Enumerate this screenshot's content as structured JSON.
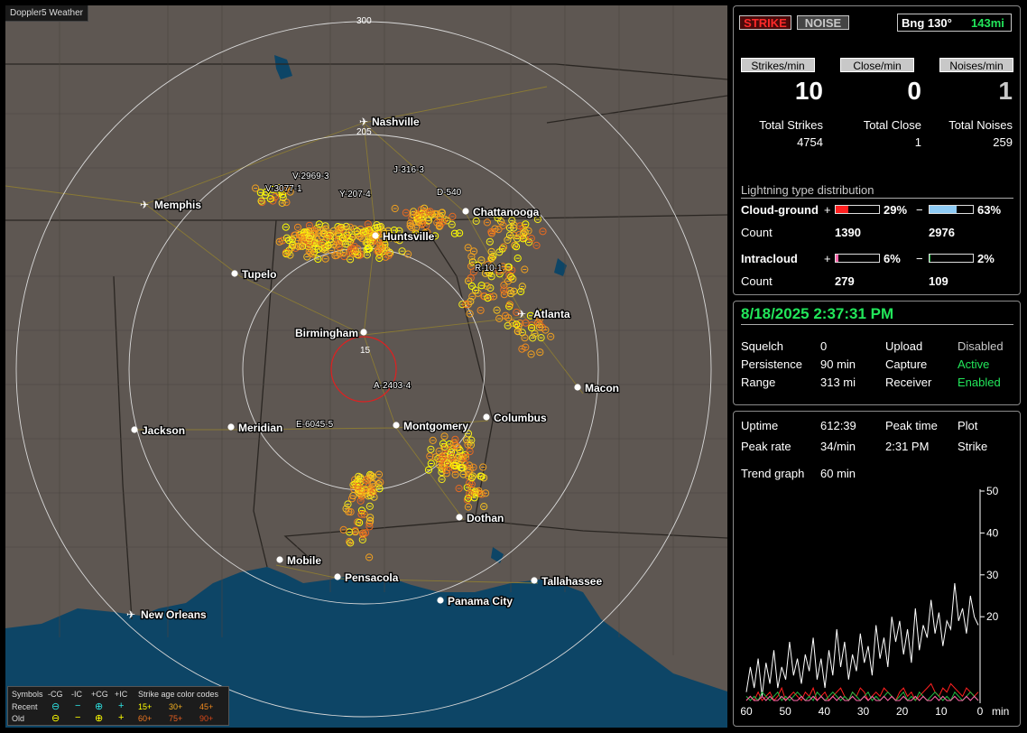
{
  "app_title": "Doppler5 Weather",
  "colors": {
    "land": "#5e5752",
    "water": "#0d4566",
    "recent": "#ffff00",
    "strike_yellow": "#f5ea1a",
    "strike_orange": "#f08a1e",
    "cg_pos": "#ff2020",
    "cg_neg": "#8ecbf5",
    "ic_pos": "#ff66aa",
    "ic_neg": "#22bb44",
    "ok": "#22e65a"
  },
  "map": {
    "ring_labels": [
      "300",
      "205",
      "15"
    ],
    "cities": [
      {
        "name": "Nashville",
        "airport": true
      },
      {
        "name": "Memphis",
        "airport": true
      },
      {
        "name": "Chattanooga",
        "airport": false
      },
      {
        "name": "Huntsville",
        "airport": false
      },
      {
        "name": "Tupelo",
        "airport": false
      },
      {
        "name": "Atlanta",
        "airport": true
      },
      {
        "name": "Birmingham",
        "airport": false
      },
      {
        "name": "Macon",
        "airport": false
      },
      {
        "name": "Columbus",
        "airport": false
      },
      {
        "name": "Montgomery",
        "airport": false
      },
      {
        "name": "Jackson",
        "airport": false
      },
      {
        "name": "Meridian",
        "airport": false
      },
      {
        "name": "Dothan",
        "airport": false
      },
      {
        "name": "Mobile",
        "airport": false
      },
      {
        "name": "Pensacola",
        "airport": false
      },
      {
        "name": "Tallahassee",
        "airport": false
      },
      {
        "name": "Panama City",
        "airport": false
      },
      {
        "name": "New Orleans",
        "airport": true
      }
    ],
    "storm_labels": [
      "V-2969-3",
      "V-3077-1",
      "Y-207-4",
      "J-316-3",
      "D-540",
      "R-10-1",
      "A-2403-4",
      "E-6045-5"
    ]
  },
  "legend": {
    "symbols_label": "Symbols",
    "cols": [
      "-CG",
      "-IC",
      "+CG",
      "+IC"
    ],
    "recent_label": "Recent",
    "old_label": "Old",
    "age_title": "Strike age color codes",
    "age_recent": [
      "15+",
      "30+",
      "45+"
    ],
    "age_old": [
      "60+",
      "75+",
      "90+"
    ]
  },
  "header": {
    "strike_label": "STRIKE",
    "noise_label": "NOISE",
    "bearing": "Bng 130°",
    "distance": "143mi"
  },
  "rates": [
    {
      "label": "Strikes/min",
      "value": "10",
      "total_label": "Total Strikes",
      "total": "4754"
    },
    {
      "label": "Close/min",
      "value": "0",
      "total_label": "Total Close",
      "total": "1"
    },
    {
      "label": "Noises/min",
      "value": "1",
      "total_label": "Total Noises",
      "total": "259"
    }
  ],
  "distribution": {
    "title": "Lightning type distribution",
    "cg_label": "Cloud-ground",
    "count_label": "Count",
    "ic_label": "Intracloud",
    "plus": "+",
    "minus": "−",
    "cg_pos_pct": "29%",
    "cg_neg_pct": "63%",
    "cg_pos_count": "1390",
    "cg_neg_count": "2976",
    "ic_pos_pct": "6%",
    "ic_neg_pct": "2%",
    "ic_pos_count": "279",
    "ic_neg_count": "109",
    "fills": {
      "cg_pos": 0.29,
      "cg_neg": 0.63,
      "ic_pos": 0.06,
      "ic_neg": 0.02
    }
  },
  "status": {
    "datetime": "8/18/2025 2:37:31 PM",
    "squelch_label": "Squelch",
    "squelch": "0",
    "persistence_label": "Persistence",
    "persistence": "90 min",
    "range_label": "Range",
    "range": "313 mi",
    "upload_label": "Upload",
    "upload": "Disabled",
    "capture_label": "Capture",
    "capture": "Active",
    "receiver_label": "Receiver",
    "receiver": "Enabled"
  },
  "stats": {
    "uptime_label": "Uptime",
    "uptime": "612:39",
    "peak_time_label": "Peak time",
    "peak_time": "2:31 PM",
    "plot_label": "Plot",
    "plot": "Strike",
    "peak_rate_label": "Peak rate",
    "peak_rate": "34/min",
    "trend_label": "Trend graph",
    "trend": "60 min"
  },
  "chart_data": {
    "type": "line",
    "x_ticks": [
      "60",
      "50",
      "40",
      "30",
      "20",
      "10",
      "0"
    ],
    "x_unit": "min",
    "y_ticks": [
      "50",
      "40",
      "30",
      "20"
    ],
    "xlim": [
      60,
      0
    ],
    "ylim": [
      0,
      50
    ],
    "series": [
      {
        "color": "#ffffff",
        "values": [
          2,
          8,
          3,
          10,
          1,
          9,
          4,
          12,
          3,
          8,
          5,
          14,
          6,
          10,
          4,
          11,
          7,
          15,
          5,
          10,
          3,
          12,
          6,
          17,
          8,
          14,
          5,
          11,
          7,
          16,
          9,
          13,
          6,
          18,
          10,
          15,
          8,
          20,
          14,
          19,
          11,
          17,
          9,
          22,
          12,
          18,
          15,
          24,
          16,
          21,
          13,
          19,
          17,
          28,
          19,
          22,
          16,
          25,
          20,
          18
        ]
      },
      {
        "color": "#ff2020",
        "values": [
          0,
          1,
          0,
          2,
          0,
          1,
          2,
          0,
          1,
          3,
          0,
          1,
          2,
          1,
          0,
          2,
          1,
          3,
          0,
          1,
          2,
          0,
          1,
          2,
          3,
          1,
          0,
          2,
          1,
          3,
          2,
          0,
          1,
          2,
          1,
          3,
          2,
          1,
          0,
          2,
          3,
          1,
          2,
          0,
          1,
          2,
          3,
          4,
          2,
          1,
          3,
          2,
          4,
          3,
          2,
          1,
          3,
          2,
          1,
          2
        ]
      },
      {
        "color": "#22bb44",
        "values": [
          1,
          0,
          1,
          0,
          2,
          1,
          0,
          1,
          2,
          0,
          1,
          0,
          1,
          2,
          1,
          0,
          1,
          0,
          2,
          1,
          0,
          1,
          2,
          1,
          0,
          1,
          0,
          2,
          1,
          0,
          1,
          2,
          0,
          1,
          0,
          1,
          2,
          1,
          0,
          1,
          2,
          0,
          1,
          0,
          2,
          1,
          0,
          1,
          2,
          1,
          0,
          1,
          0,
          2,
          1,
          0,
          1,
          2,
          1,
          0
        ]
      },
      {
        "color": "#ff66aa",
        "values": [
          0,
          1,
          0,
          0,
          1,
          0,
          1,
          0,
          0,
          1,
          0,
          1,
          0,
          0,
          1,
          0,
          0,
          1,
          0,
          1,
          0,
          0,
          1,
          0,
          1,
          0,
          0,
          1,
          0,
          0,
          1,
          0,
          1,
          0,
          0,
          1,
          0,
          1,
          0,
          0,
          1,
          0,
          0,
          1,
          0,
          1,
          0,
          0,
          1,
          0,
          1,
          0,
          0,
          1,
          0,
          0,
          1,
          0,
          1,
          0
        ]
      }
    ]
  }
}
